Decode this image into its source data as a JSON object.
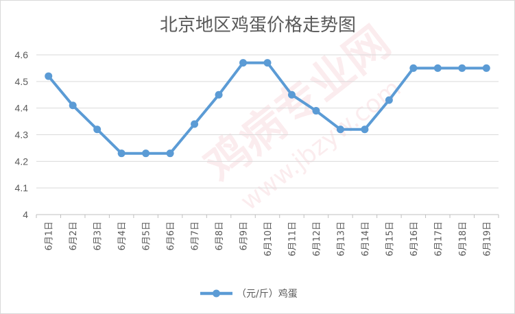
{
  "chart_data": {
    "type": "line",
    "title": "北京地区鸡蛋价格走势图",
    "categories": [
      "6月1日",
      "6月2日",
      "6月3日",
      "6月4日",
      "6月5日",
      "6月6日",
      "6月7日",
      "6月8日",
      "6月9日",
      "6月10日",
      "6月11日",
      "6月12日",
      "6月13日",
      "6月14日",
      "6月15日",
      "6月16日",
      "6月17日",
      "6月18日",
      "6月19日"
    ],
    "series": [
      {
        "name": "（元/斤）鸡蛋",
        "color": "#5b9bd5",
        "values": [
          4.52,
          4.41,
          4.32,
          4.23,
          4.23,
          4.23,
          4.34,
          4.45,
          4.57,
          4.57,
          4.45,
          4.39,
          4.32,
          4.32,
          4.43,
          4.55,
          4.55,
          4.55,
          4.55
        ]
      }
    ],
    "ylim": [
      4,
      4.6
    ],
    "yticks": [
      "4",
      "4.1",
      "4.2",
      "4.3",
      "4.4",
      "4.5",
      "4.6"
    ],
    "grid": true,
    "legend_position": "bottom"
  },
  "watermark": {
    "text": "鸡病专业网",
    "url": "www.jbzyw.com"
  }
}
